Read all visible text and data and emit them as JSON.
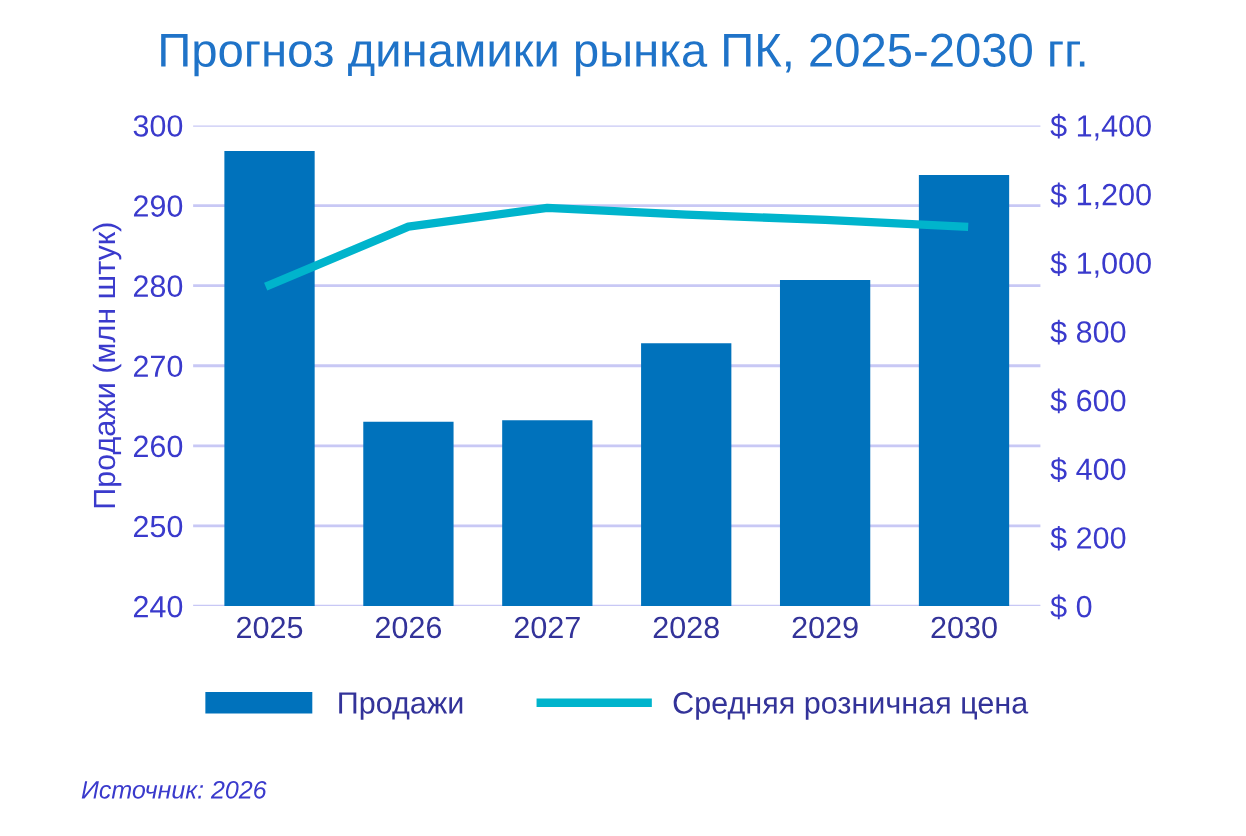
{
  "chart_data": {
    "type": "bar",
    "title": "Прогноз динамики рынка ПК, 2025-2030 гг.",
    "ylabel": "Продажи (млн штук)",
    "categories": [
      "2025",
      "2026",
      "2027",
      "2028",
      "2029",
      "2030"
    ],
    "series": [
      {
        "name": "Продажи",
        "color": "#0072bc",
        "values": [
          296.8,
          263.0,
          263.2,
          272.8,
          280.7,
          293.8
        ]
      },
      {
        "name": "Средняя розничная цена",
        "type": "line",
        "axis": "y2",
        "color": "#00b4cc",
        "values": [
          935,
          1105,
          1160,
          1140,
          1125,
          1105
        ]
      }
    ],
    "ylim": [
      240,
      300
    ],
    "yticks": [
      240,
      250,
      260,
      270,
      280,
      290,
      300
    ],
    "y2lim": [
      0,
      1400
    ],
    "y2ticks": [
      {
        "value": 0,
        "label": "$ 0"
      },
      {
        "value": 200,
        "label": "$ 200"
      },
      {
        "value": 400,
        "label": "$ 400"
      },
      {
        "value": 600,
        "label": "$ 600"
      },
      {
        "value": 800,
        "label": "$ 800"
      },
      {
        "value": 1000,
        "label": "$ 1,000"
      },
      {
        "value": 1200,
        "label": "$ 1,200"
      },
      {
        "value": 1400,
        "label": "$ 1,400"
      }
    ],
    "grid": "y",
    "legend": "bottom",
    "marker": "none",
    "line_style": "solid",
    "annotations": [
      "Источник: 2026"
    ]
  }
}
